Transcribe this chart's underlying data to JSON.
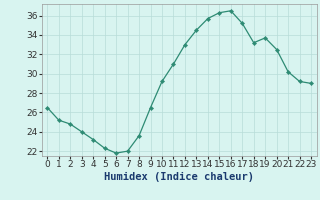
{
  "x": [
    0,
    1,
    2,
    3,
    4,
    5,
    6,
    7,
    8,
    9,
    10,
    11,
    12,
    13,
    14,
    15,
    16,
    17,
    18,
    19,
    20,
    21,
    22,
    23
  ],
  "y": [
    26.5,
    25.2,
    24.8,
    24.0,
    23.2,
    22.3,
    21.8,
    22.0,
    23.6,
    26.5,
    29.2,
    31.0,
    33.0,
    34.5,
    35.7,
    36.3,
    36.5,
    35.2,
    33.2,
    33.7,
    32.5,
    30.2,
    29.2,
    29.0
  ],
  "line_color": "#2e8b74",
  "marker": "D",
  "marker_size": 2.2,
  "bg_color": "#d8f4f0",
  "grid_color": "#b8ddd8",
  "xlabel": "Humidex (Indice chaleur)",
  "ylim": [
    21.5,
    37.2
  ],
  "xlim": [
    -0.5,
    23.5
  ],
  "yticks": [
    22,
    24,
    26,
    28,
    30,
    32,
    34,
    36
  ],
  "xticks": [
    0,
    1,
    2,
    3,
    4,
    5,
    6,
    7,
    8,
    9,
    10,
    11,
    12,
    13,
    14,
    15,
    16,
    17,
    18,
    19,
    20,
    21,
    22,
    23
  ],
  "xlabel_fontsize": 7.5,
  "tick_fontsize": 6.5
}
